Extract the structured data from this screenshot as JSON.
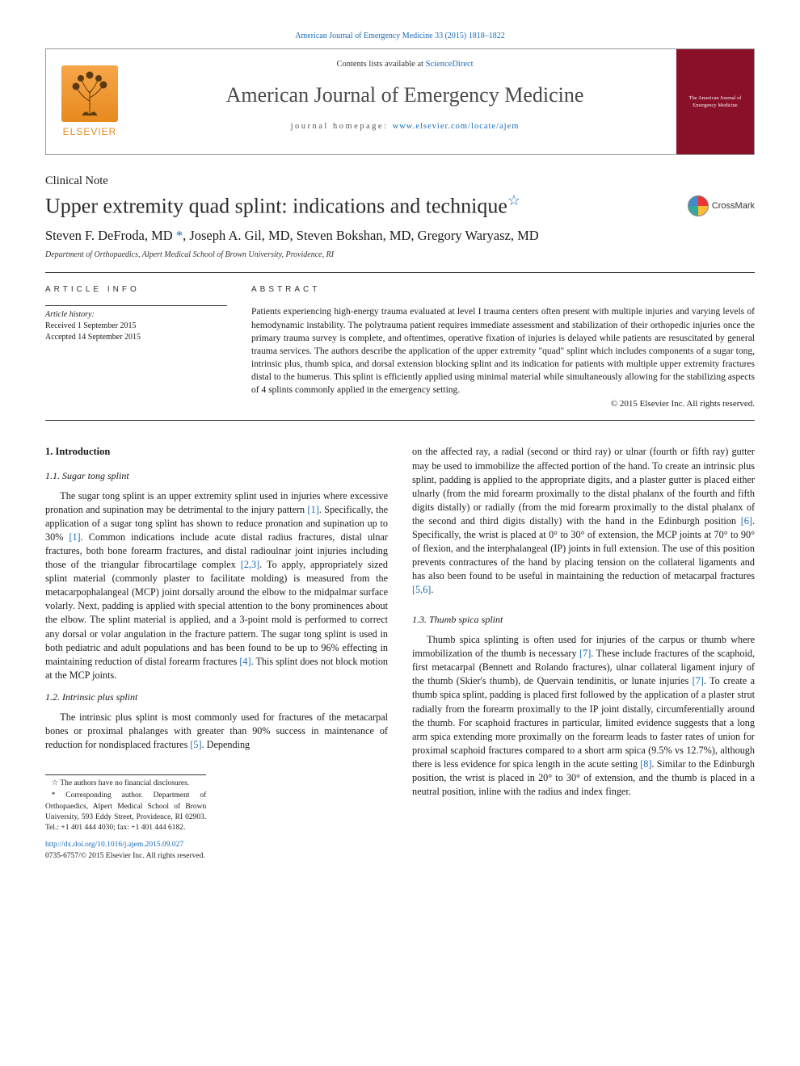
{
  "citation_line": "American Journal of Emergency Medicine 33 (2015) 1818–1822",
  "header": {
    "contents_prefix": "Contents lists available at ",
    "contents_link": "ScienceDirect",
    "journal_name": "American Journal of Emergency Medicine",
    "homepage_prefix": "journal homepage: ",
    "homepage_url": "www.elsevier.com/locate/ajem",
    "publisher_word": "ELSEVIER",
    "cover_text": "The American Journal of Emergency Medicine"
  },
  "article": {
    "type": "Clinical Note",
    "title": "Upper extremity quad splint: indications and technique",
    "star": "☆",
    "crossmark_label": "CrossMark",
    "authors_html": "Steven F. DeFroda, MD <span class='author-link'>*</span>, Joseph A. Gil, MD, Steven Bokshan, MD, Gregory Waryasz, MD",
    "affiliation": "Department of Orthopaedics, Alpert Medical School of Brown University, Providence, RI"
  },
  "info": {
    "head": "article info",
    "history_label": "Article history:",
    "received": "Received 1 September 2015",
    "accepted": "Accepted 14 September 2015"
  },
  "abstract": {
    "head": "abstract",
    "text": "Patients experiencing high-energy trauma evaluated at level I trauma centers often present with multiple injuries and varying levels of hemodynamic instability. The polytrauma patient requires immediate assessment and stabilization of their orthopedic injuries once the primary trauma survey is complete, and oftentimes, operative fixation of injuries is delayed while patients are resuscitated by general trauma services. The authors describe the application of the upper extremity \"quad\" splint which includes components of a sugar tong, intrinsic plus, thumb spica, and dorsal extension blocking splint and its indication for patients with multiple upper extremity fractures distal to the humerus. This splint is efficiently applied using minimal material while simultaneously allowing for the stabilizing aspects of 4 splints commonly applied in the emergency setting.",
    "copyright": "© 2015 Elsevier Inc. All rights reserved."
  },
  "body": {
    "h_intro": "1. Introduction",
    "h_sugar": "1.1. Sugar tong splint",
    "p_sugar": "The sugar tong splint is an upper extremity splint used in injuries where excessive pronation and supination may be detrimental to the injury pattern [1]. Specifically, the application of a sugar tong splint has shown to reduce pronation and supination up to 30% [1]. Common indications include acute distal radius fractures, distal ulnar fractures, both bone forearm fractures, and distal radioulnar joint injuries including those of the triangular fibrocartilage complex [2,3]. To apply, appropriately sized splint material (commonly plaster to facilitate molding) is measured from the metacarpophalangeal (MCP) joint dorsally around the elbow to the midpalmar surface volarly. Next, padding is applied with special attention to the bony prominences about the elbow. The splint material is applied, and a 3-point mold is performed to correct any dorsal or volar angulation in the fracture pattern. The sugar tong splint is used in both pediatric and adult populations and has been found to be up to 96% effecting in maintaining reduction of distal forearm fractures [4]. This splint does not block motion at the MCP joints.",
    "h_intrinsic": "1.2. Intrinsic plus splint",
    "p_intrinsic1": "The intrinsic plus splint is most commonly used for fractures of the metacarpal bones or proximal phalanges with greater than 90% success in maintenance of reduction for nondisplaced fractures [5]. Depending",
    "p_intrinsic2": "on the affected ray, a radial (second or third ray) or ulnar (fourth or fifth ray) gutter may be used to immobilize the affected portion of the hand. To create an intrinsic plus splint, padding is applied to the appropriate digits, and a plaster gutter is placed either ulnarly (from the mid forearm proximally to the distal phalanx of the fourth and fifth digits distally) or radially (from the mid forearm proximally to the distal phalanx of the second and third digits distally) with the hand in the Edinburgh position [6]. Specifically, the wrist is placed at 0° to 30° of extension, the MCP joints at 70° to 90° of flexion, and the interphalangeal (IP) joints in full extension. The use of this position prevents contractures of the hand by placing tension on the collateral ligaments and has also been found to be useful in maintaining the reduction of metacarpal fractures [5,6].",
    "h_thumb": "1.3. Thumb spica splint",
    "p_thumb": "Thumb spica splinting is often used for injuries of the carpus or thumb where immobilization of the thumb is necessary [7]. These include fractures of the scaphoid, first metacarpal (Bennett and Rolando fractures), ulnar collateral ligament injury of the thumb (Skier's thumb), de Quervain tendinitis, or lunate injuries [7]. To create a thumb spica splint, padding is placed first followed by the application of a plaster strut radially from the forearm proximally to the IP joint distally, circumferentially around the thumb. For scaphoid fractures in particular, limited evidence suggests that a long arm spica extending more proximally on the forearm leads to faster rates of union for proximal scaphoid fractures compared to a short arm spica (9.5% vs 12.7%), although there is less evidence for spica length in the acute setting [8]. Similar to the Edinburgh position, the wrist is placed in 20° to 30° of extension, and the thumb is placed in a neutral position, inline with the radius and index finger."
  },
  "footnotes": {
    "disclosure": "☆  The authors have no financial disclosures.",
    "corresponding": "*  Corresponding author. Department of Orthopaedics, Alpert Medical School of Brown University, 593 Eddy Street, Providence, RI 02903. Tel.: +1 401 444 4030; fax: +1 401 444 6182."
  },
  "doi": {
    "url": "http://dx.doi.org/10.1016/j.ajem.2015.09.027",
    "issn_line": "0735-6757/© 2015 Elsevier Inc. All rights reserved."
  },
  "refs": {
    "r1": "[1]",
    "r1b": "[1]",
    "r23": "[2,3]",
    "r4": "[4]",
    "r5": "[5]",
    "r6": "[6]",
    "r56": "[5,6]",
    "r7": "[7]",
    "r7b": "[7]",
    "r8": "[8]"
  },
  "colors": {
    "link": "#1a6bb5",
    "elsevier_orange": "#e78a1e",
    "cover_red": "#8a0f28"
  }
}
